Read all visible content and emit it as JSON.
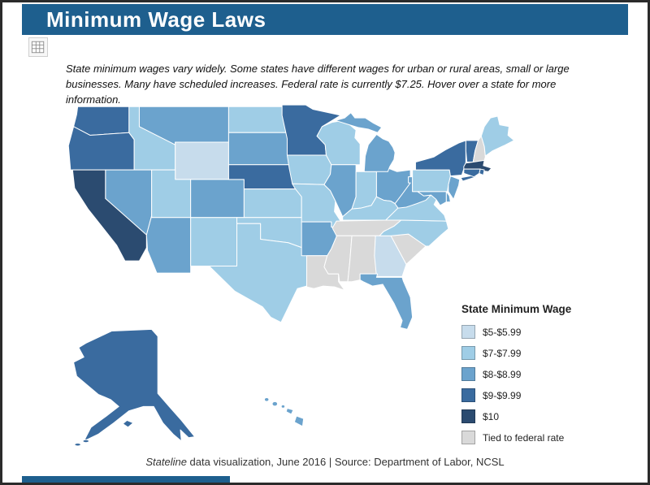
{
  "header": {
    "title": "Minimum Wage Laws"
  },
  "description": "State minimum wages vary widely. Some states have different wages for urban or rural areas, small or large businesses. Many have scheduled increases. Federal rate is currently $7.25. Hover over a state for more information.",
  "legend": {
    "title": "State Minimum Wage",
    "items": [
      {
        "label": "$5-$5.99",
        "color": "#c7dcec"
      },
      {
        "label": "$7-$7.99",
        "color": "#9fcde6"
      },
      {
        "label": "$8-$8.99",
        "color": "#6ba3cd"
      },
      {
        "label": "$9-$9.99",
        "color": "#3a6b9f"
      },
      {
        "label": "$10",
        "color": "#2b4b70"
      },
      {
        "label": "Tied to federal rate",
        "color": "#d9d9d9"
      }
    ]
  },
  "footer": {
    "brand": "Stateline",
    "text": " data visualization, June 2016 | Source: Department of Labor, NCSL"
  },
  "colors": {
    "header_bar": "#1e5f8e",
    "state_border": "#ffffff"
  },
  "chart_data": {
    "type": "choropleth",
    "title": "State Minimum Wage",
    "federal_rate": "$7.25",
    "as_of": "June 2016",
    "source": "Department of Labor, NCSL",
    "legend_categories": [
      "$5-$5.99",
      "$7-$7.99",
      "$8-$8.99",
      "$9-$9.99",
      "$10",
      "Tied to federal rate"
    ],
    "states": {
      "WA": "$9-$9.99",
      "OR": "$9-$9.99",
      "CA": "$10",
      "NV": "$8-$8.99",
      "ID": "$7-$7.99",
      "MT": "$8-$8.99",
      "WY": "$5-$5.99",
      "UT": "$7-$7.99",
      "AZ": "$8-$8.99",
      "CO": "$8-$8.99",
      "NM": "$7-$7.99",
      "ND": "$7-$7.99",
      "SD": "$8-$8.99",
      "NE": "$9-$9.99",
      "KS": "$7-$7.99",
      "OK": "$7-$7.99",
      "TX": "$7-$7.99",
      "MN": "$9-$9.99",
      "IA": "$7-$7.99",
      "MO": "$7-$7.99",
      "AR": "$8-$8.99",
      "LA": "Tied to federal rate",
      "WI": "$7-$7.99",
      "IL": "$8-$8.99",
      "MI": "$8-$8.99",
      "IN": "$7-$7.99",
      "OH": "$8-$8.99",
      "KY": "$7-$7.99",
      "TN": "Tied to federal rate",
      "MS": "Tied to federal rate",
      "AL": "Tied to federal rate",
      "GA": "$5-$5.99",
      "FL": "$8-$8.99",
      "SC": "Tied to federal rate",
      "NC": "$7-$7.99",
      "VA": "$7-$7.99",
      "WV": "$8-$8.99",
      "MD": "$8-$8.99",
      "DE": "$8-$8.99",
      "NJ": "$8-$8.99",
      "PA": "$7-$7.99",
      "NY": "$9-$9.99",
      "CT": "$9-$9.99",
      "RI": "$9-$9.99",
      "MA": "$10",
      "VT": "$9-$9.99",
      "NH": "Tied to federal rate",
      "ME": "$7-$7.99",
      "AK": "$9-$9.99",
      "HI": "$8-$8.99"
    }
  }
}
